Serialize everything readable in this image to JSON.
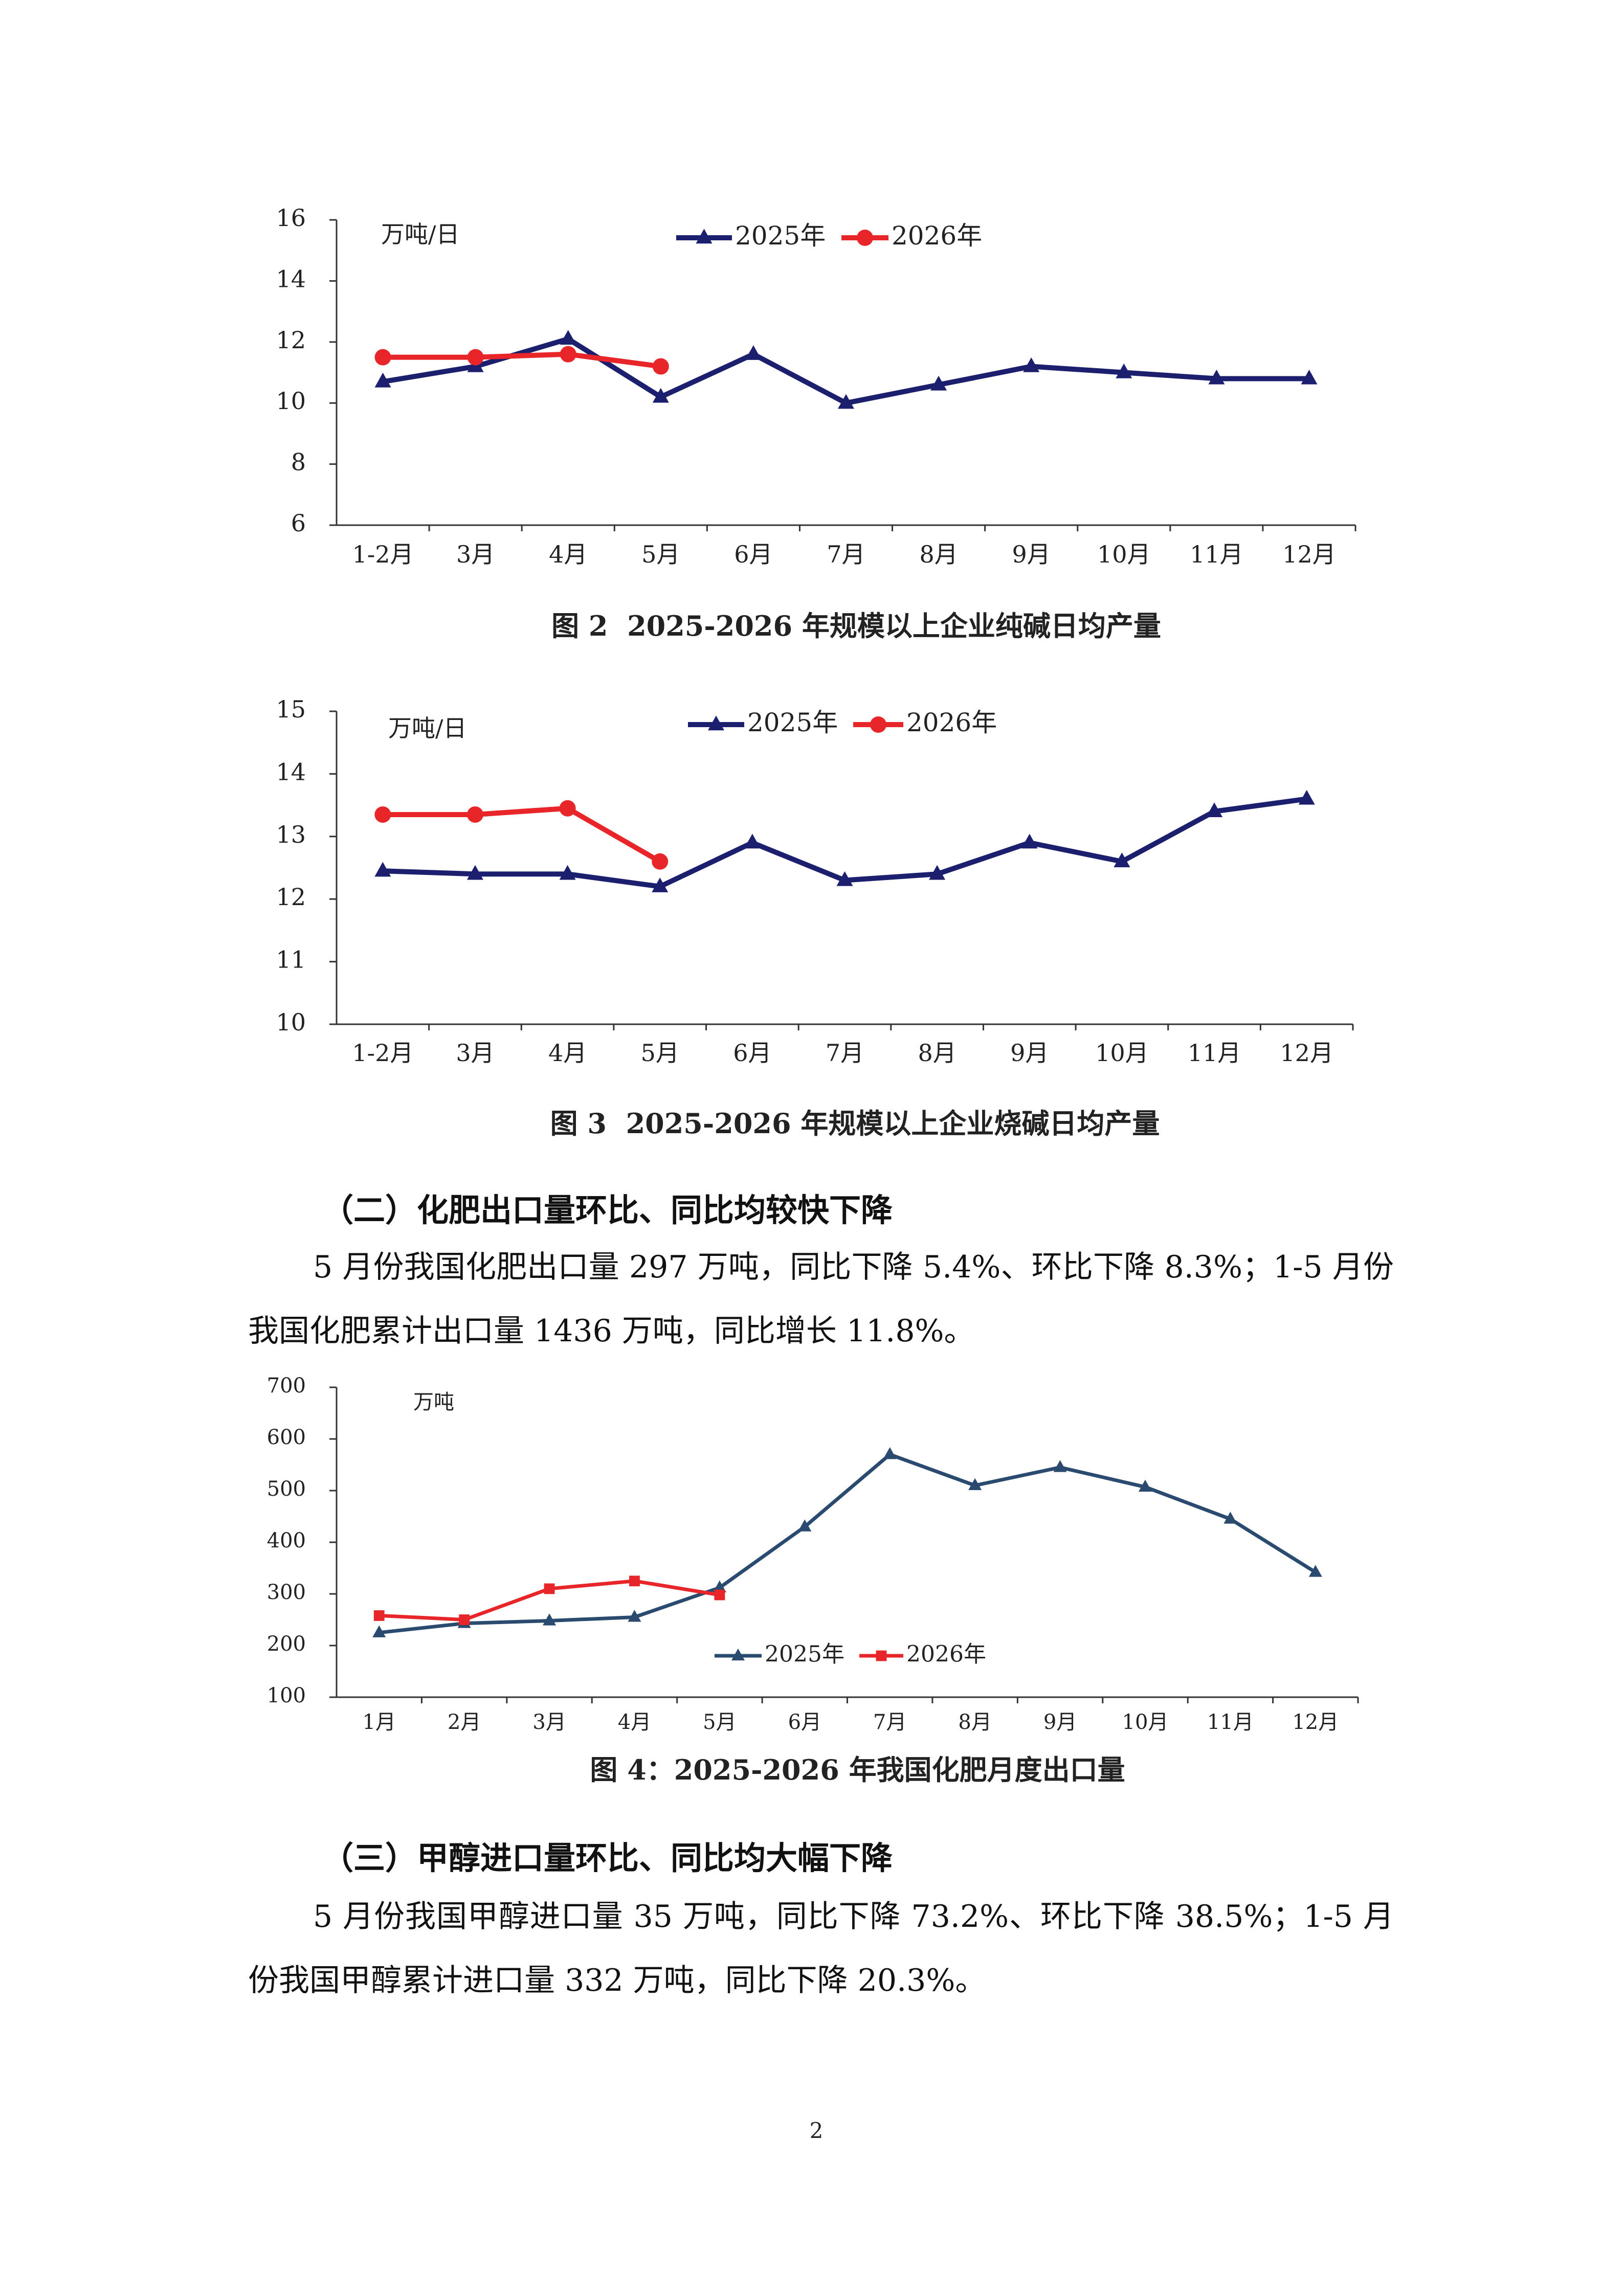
{
  "chart_data": [
    {
      "type": "line",
      "unit_label": "万吨/日",
      "caption": "图 2  2025-2026 年规模以上企业纯碱日均产量",
      "categories": [
        "1-2月",
        "3月",
        "4月",
        "5月",
        "6月",
        "7月",
        "8月",
        "9月",
        "10月",
        "11月",
        "12月"
      ],
      "series": [
        {
          "name": "2025年",
          "color": "#1c1f6e",
          "marker": "triangle",
          "values": [
            10.7,
            11.2,
            12.1,
            10.2,
            11.6,
            10.0,
            10.6,
            11.2,
            11.0,
            10.8,
            10.8
          ]
        },
        {
          "name": "2026年",
          "color": "#e8262a",
          "marker": "circle",
          "values": [
            11.5,
            11.5,
            11.6,
            11.2,
            null,
            null,
            null,
            null,
            null,
            null,
            null
          ]
        }
      ],
      "ylim": [
        6,
        16
      ],
      "yticks": [
        6,
        8,
        10,
        12,
        14,
        16
      ]
    },
    {
      "type": "line",
      "unit_label": "万吨/日",
      "caption": "图 3  2025-2026 年规模以上企业烧碱日均产量",
      "categories": [
        "1-2月",
        "3月",
        "4月",
        "5月",
        "6月",
        "7月",
        "8月",
        "9月",
        "10月",
        "11月",
        "12月"
      ],
      "series": [
        {
          "name": "2025年",
          "color": "#1c1f6e",
          "marker": "triangle",
          "values": [
            12.45,
            12.4,
            12.4,
            12.2,
            12.9,
            12.3,
            12.4,
            12.9,
            12.6,
            13.4,
            13.6
          ]
        },
        {
          "name": "2026年",
          "color": "#e8262a",
          "marker": "circle",
          "values": [
            13.35,
            13.35,
            13.45,
            12.6,
            null,
            null,
            null,
            null,
            null,
            null,
            null
          ]
        }
      ],
      "ylim": [
        10,
        15
      ],
      "yticks": [
        10,
        11,
        12,
        13,
        14,
        15
      ]
    },
    {
      "type": "line",
      "unit_label": "万吨",
      "caption": "图 4：2025-2026 年我国化肥月度出口量",
      "categories": [
        "1月",
        "2月",
        "3月",
        "4月",
        "5月",
        "6月",
        "7月",
        "8月",
        "9月",
        "10月",
        "11月",
        "12月"
      ],
      "series": [
        {
          "name": "2025年",
          "color": "#2b4a6f",
          "marker": "triangle",
          "values": [
            225,
            243,
            248,
            255,
            312,
            430,
            570,
            510,
            545,
            507,
            445,
            342
          ]
        },
        {
          "name": "2026年",
          "color": "#e8262a",
          "marker": "square",
          "values": [
            258,
            250,
            310,
            325,
            298,
            null,
            null,
            null,
            null,
            null,
            null,
            null
          ]
        }
      ],
      "ylim": [
        100,
        700
      ],
      "yticks": [
        100,
        200,
        300,
        400,
        500,
        600,
        700
      ]
    }
  ],
  "sections": [
    {
      "heading": "（二）化肥出口量环比、同比均较快下降",
      "paragraph": "5 月份我国化肥出口量 297 万吨，同比下降 5.4%、环比下降 8.3%；1-5 月份我国化肥累计出口量 1436 万吨，同比增长 11.8%。"
    },
    {
      "heading": "（三）甲醇进口量环比、同比均大幅下降",
      "paragraph": "5 月份我国甲醇进口量 35 万吨，同比下降 73.2%、环比下降 38.5%；1-5 月份我国甲醇累计进口量 332 万吨，同比下降 20.3%。"
    }
  ],
  "page_number": "2"
}
